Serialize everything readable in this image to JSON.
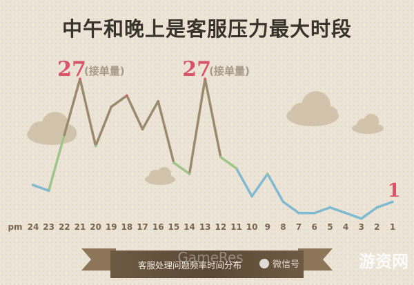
{
  "chart_data": {
    "type": "line",
    "title": "中午和晚上是客服压力最大时段",
    "x_prefix": "pm",
    "categories": [
      "24",
      "23",
      "22",
      "21",
      "20",
      "19",
      "18",
      "17",
      "16",
      "15",
      "14",
      "13",
      "12",
      "11",
      "10",
      "9",
      "8",
      "7",
      "6",
      "5",
      "4",
      "3",
      "2",
      "1"
    ],
    "values": [
      8,
      7,
      17,
      27,
      15,
      22,
      24,
      18,
      23,
      12,
      10,
      27,
      13,
      11,
      6,
      10,
      5,
      3,
      3,
      4,
      3,
      2,
      4,
      5
    ],
    "annotations": [
      {
        "index": 3,
        "number": "27",
        "label": "(接单量)"
      },
      {
        "index": 11,
        "number": "27",
        "label": "(接单量)"
      }
    ],
    "end_annotation": {
      "index": 23,
      "number": "1"
    },
    "colors": {
      "low": "#7fbad0",
      "mid": "#9fc58b",
      "midhigh": "#9a8a6e",
      "high": "#e05a6c"
    },
    "ylim": [
      0,
      30
    ]
  },
  "banner": {
    "text": "客服处理问题频率时间分布"
  },
  "watermark": {
    "wechat": "微信号",
    "site": "游资网",
    "faint": "GameRes"
  }
}
